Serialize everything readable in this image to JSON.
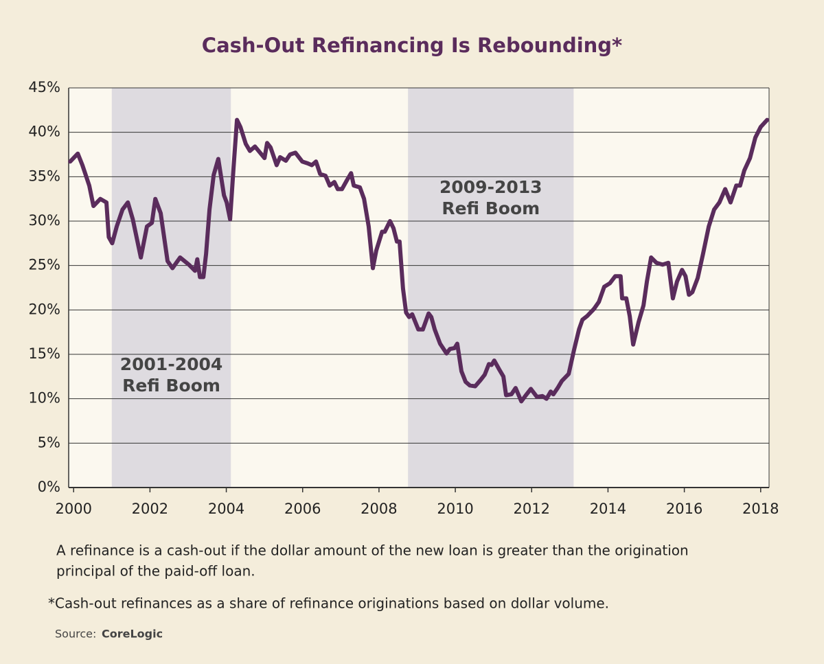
{
  "chart_data": {
    "type": "line",
    "title": "Cash-Out Refinancing Is Rebounding*",
    "x": [
      1999.91,
      2000.11,
      2000.23,
      2000.41,
      2000.52,
      2000.7,
      2000.86,
      2000.92,
      2001.01,
      2001.13,
      2001.28,
      2001.42,
      2001.55,
      2001.76,
      2001.92,
      2002.05,
      2002.14,
      2002.28,
      2002.46,
      2002.59,
      2002.79,
      2003.02,
      2003.18,
      2003.24,
      2003.31,
      2003.4,
      2003.47,
      2003.56,
      2003.67,
      2003.79,
      2003.94,
      2004.01,
      2004.1,
      2004.19,
      2004.28,
      2004.37,
      2004.51,
      2004.62,
      2004.75,
      2005.0,
      2005.07,
      2005.16,
      2005.32,
      2005.41,
      2005.56,
      2005.67,
      2005.81,
      2005.99,
      2006.13,
      2006.24,
      2006.35,
      2006.46,
      2006.6,
      2006.71,
      2006.83,
      2006.92,
      2007.03,
      2007.16,
      2007.27,
      2007.34,
      2007.5,
      2007.61,
      2007.73,
      2007.84,
      2007.93,
      2008.08,
      2008.15,
      2008.29,
      2008.38,
      2008.47,
      2008.54,
      2008.63,
      2008.71,
      2008.79,
      2008.87,
      2009.03,
      2009.15,
      2009.3,
      2009.37,
      2009.46,
      2009.6,
      2009.77,
      2009.86,
      2009.98,
      2010.05,
      2010.16,
      2010.27,
      2010.38,
      2010.52,
      2010.66,
      2010.77,
      2010.88,
      2010.95,
      2011.02,
      2011.15,
      2011.26,
      2011.33,
      2011.47,
      2011.58,
      2011.73,
      2011.85,
      2011.98,
      2012.14,
      2012.28,
      2012.39,
      2012.5,
      2012.57,
      2012.68,
      2012.79,
      2012.97,
      2013.11,
      2013.24,
      2013.33,
      2013.45,
      2013.63,
      2013.76,
      2013.9,
      2014.05,
      2014.19,
      2014.33,
      2014.37,
      2014.48,
      2014.57,
      2014.66,
      2014.8,
      2014.93,
      2015.02,
      2015.13,
      2015.27,
      2015.43,
      2015.58,
      2015.7,
      2015.81,
      2015.94,
      2016.03,
      2016.12,
      2016.21,
      2016.35,
      2016.49,
      2016.64,
      2016.78,
      2016.92,
      2017.07,
      2017.21,
      2017.36,
      2017.46,
      2017.57,
      2017.72,
      2017.86,
      2018.0,
      2018.17
    ],
    "values": [
      36.7,
      37.6,
      36.3,
      34.0,
      31.7,
      32.5,
      32.1,
      28.2,
      27.5,
      29.4,
      31.3,
      32.1,
      30.2,
      25.9,
      29.4,
      29.8,
      32.5,
      30.9,
      25.5,
      24.7,
      25.9,
      25.1,
      24.4,
      25.7,
      23.7,
      23.7,
      26.3,
      31.3,
      35.2,
      37.0,
      32.9,
      32.1,
      30.2,
      36.0,
      41.4,
      40.6,
      38.7,
      37.9,
      38.4,
      37.1,
      38.8,
      38.3,
      36.3,
      37.2,
      36.8,
      37.5,
      37.7,
      36.7,
      36.5,
      36.3,
      36.7,
      35.3,
      35.1,
      34.0,
      34.4,
      33.6,
      33.6,
      34.6,
      35.4,
      34.0,
      33.8,
      32.5,
      29.4,
      24.7,
      26.7,
      28.8,
      28.8,
      30.0,
      29.2,
      27.7,
      27.7,
      22.4,
      19.7,
      19.2,
      19.5,
      17.8,
      17.8,
      19.6,
      19.2,
      17.8,
      16.2,
      15.1,
      15.6,
      15.7,
      16.2,
      13.1,
      11.9,
      11.5,
      11.4,
      12.1,
      12.7,
      13.9,
      13.8,
      14.3,
      13.3,
      12.5,
      10.4,
      10.5,
      11.2,
      9.7,
      10.4,
      11.1,
      10.2,
      10.3,
      10.0,
      10.8,
      10.5,
      11.2,
      12.0,
      12.8,
      15.5,
      17.8,
      18.9,
      19.3,
      20.1,
      20.9,
      22.6,
      23.0,
      23.8,
      23.8,
      21.3,
      21.3,
      19.3,
      16.1,
      18.6,
      20.5,
      23.2,
      25.9,
      25.3,
      25.1,
      25.3,
      21.3,
      23.2,
      24.5,
      23.8,
      21.7,
      22.0,
      23.6,
      26.3,
      29.4,
      31.3,
      32.1,
      33.6,
      32.1,
      34.0,
      34.0,
      35.7,
      37.1,
      39.4,
      40.6,
      41.4
    ],
    "color": "#5a2c5c",
    "xlim": [
      1999.87,
      2018.22
    ],
    "xticks": [
      2000,
      2002,
      2004,
      2006,
      2008,
      2010,
      2012,
      2014,
      2016,
      2018
    ],
    "ylim": [
      0,
      45
    ],
    "yticks": [
      {
        "value": 0,
        "label": "0%"
      },
      {
        "value": 5,
        "label": "5%"
      },
      {
        "value": 10,
        "label": "10%"
      },
      {
        "value": 15,
        "label": "15%"
      },
      {
        "value": 20,
        "label": "20%"
      },
      {
        "value": 25,
        "label": "25%"
      },
      {
        "value": 30,
        "label": "30%"
      },
      {
        "value": 35,
        "label": "35%"
      },
      {
        "value": 40,
        "label": "40%"
      },
      {
        "value": 45,
        "label": "45%"
      }
    ],
    "grid": true,
    "shaded_regions": [
      {
        "x": [
          2001.0,
          2004.12
        ],
        "label": [
          "2001-2004",
          "Refi Boom"
        ],
        "color": "#dedbe0"
      },
      {
        "x": [
          2008.76,
          2013.1
        ],
        "label": [
          "2009-2013",
          "Refi Boom"
        ],
        "color": "#dedbe0"
      }
    ]
  },
  "notes": [
    "A refinance is a cash-out if the dollar amount of the new loan is greater than the origination",
    "principal of the paid-off loan."
  ],
  "footnote": "*Cash-out refinances as a share of refinance originations based on dollar volume.",
  "source": {
    "label": "Source:",
    "name": "CoreLogic"
  }
}
